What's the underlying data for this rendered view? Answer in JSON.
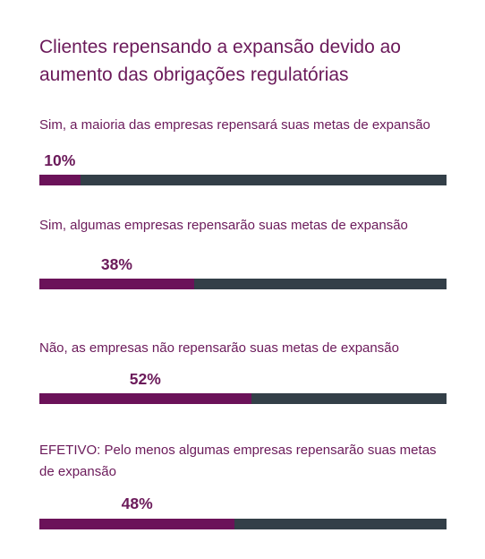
{
  "chart_data": {
    "type": "bar",
    "orientation": "horizontal",
    "title": "Clientes repensando a expansão devido ao aumento das obrigações regulatórias",
    "xlim": [
      0,
      100
    ],
    "unit": "%",
    "items": [
      {
        "label": "Sim, a maioria das empresas repensará suas metas de expansão",
        "value": 10,
        "value_label": "10%"
      },
      {
        "label": "Sim, algumas empresas repensarão suas metas de expansão",
        "value": 38,
        "value_label": "38%"
      },
      {
        "label": "Não, as empresas não repensarão suas metas de expansão",
        "value": 52,
        "value_label": "52%"
      },
      {
        "label": "EFETIVO: Pelo menos algumas empresas repensarão suas metas de expansão",
        "value": 48,
        "value_label": "48%"
      }
    ],
    "colors": {
      "fill": "#6b1259",
      "track": "#333f48",
      "text": "#6b1a5a"
    }
  }
}
